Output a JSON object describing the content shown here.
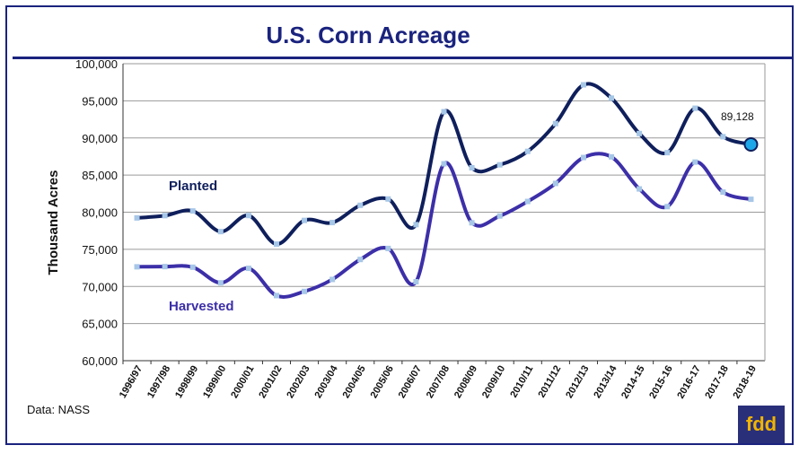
{
  "source_text": "Data: NASS",
  "logo_text": "fdd",
  "chart_data": {
    "type": "line",
    "title": "U.S. Corn Acreage",
    "ylabel": "Thousand Acres",
    "xlabel": "",
    "ylim": [
      60000,
      100000
    ],
    "yticks": [
      "60,000",
      "65,000",
      "70,000",
      "75,000",
      "80,000",
      "85,000",
      "90,000",
      "95,000",
      "100,000"
    ],
    "grid": true,
    "categories": [
      "1996/97",
      "1997/98",
      "1998/99",
      "1999/00",
      "2000/01",
      "2001/02",
      "2002/03",
      "2003/04",
      "2004/05",
      "2005/06",
      "2006/07",
      "2007/08",
      "2008/09",
      "2009/10",
      "2010/11",
      "2011/12",
      "2012/13",
      "2013/14",
      "2014-15",
      "2015-16",
      "2016-17",
      "2017-18",
      "2018-19"
    ],
    "series": [
      {
        "name": "Planted",
        "color": "#0f1f5c",
        "values": [
          79229,
          79537,
          80165,
          77386,
          79551,
          75702,
          78894,
          78603,
          80929,
          81779,
          78327,
          93527,
          85982,
          86382,
          88192,
          91936,
          97155,
          95365,
          90597,
          88019,
          94004,
          90167,
          89128
        ]
      },
      {
        "name": "Harvested",
        "color": "#3c2fa8",
        "values": [
          72644,
          72671,
          72589,
          70487,
          72440,
          68768,
          69330,
          70944,
          73631,
          75117,
          70638,
          86520,
          78570,
          79490,
          81446,
          83879,
          87365,
          87451,
          83136,
          80753,
          86748,
          82703,
          81740
        ]
      }
    ],
    "annotation": {
      "text": "89,128",
      "series": "Planted",
      "category": "2018-19"
    },
    "highlight_color": "#1ea7e8"
  }
}
